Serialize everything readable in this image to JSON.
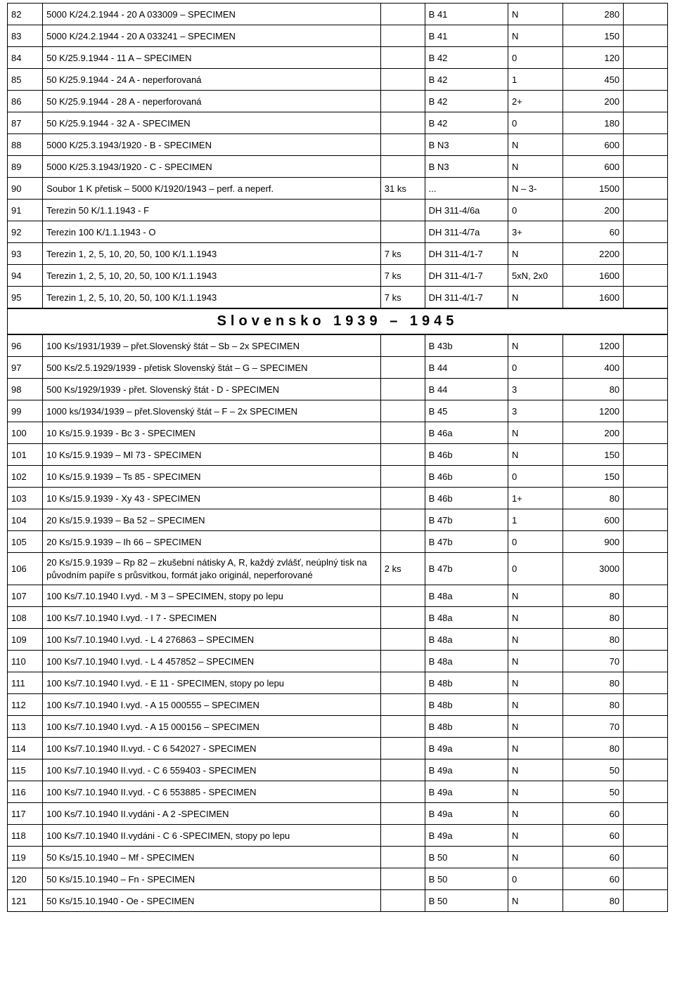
{
  "section_title": "Slovensko 1939 – 1945",
  "rows": [
    {
      "num": "82",
      "desc": "5000 K/24.2.1944 - 20 A 033009 – SPECIMEN",
      "qty": "",
      "ref": "B 41",
      "grade": "N",
      "price": "280"
    },
    {
      "num": "83",
      "desc": "5000 K/24.2.1944 - 20 A 033241 – SPECIMEN",
      "qty": "",
      "ref": "B 41",
      "grade": "N",
      "price": "150"
    },
    {
      "num": "84",
      "desc": "50 K/25.9.1944 - 11 A – SPECIMEN",
      "qty": "",
      "ref": "B 42",
      "grade": "0",
      "price": "120"
    },
    {
      "num": "85",
      "desc": "50 K/25.9.1944 - 24 A - neperforovaná",
      "qty": "",
      "ref": "B 42",
      "grade": "1",
      "price": "450"
    },
    {
      "num": "86",
      "desc": "50 K/25.9.1944 - 28 A - neperforovaná",
      "qty": "",
      "ref": "B 42",
      "grade": "2+",
      "price": "200"
    },
    {
      "num": "87",
      "desc": "50 K/25.9.1944 - 32 A - SPECIMEN",
      "qty": "",
      "ref": "B 42",
      "grade": "0",
      "price": "180"
    },
    {
      "num": "88",
      "desc": "5000 K/25.3.1943/1920 - B - SPECIMEN",
      "qty": "",
      "ref": "B N3",
      "grade": "N",
      "price": "600"
    },
    {
      "num": "89",
      "desc": "5000 K/25.3.1943/1920 - C - SPECIMEN",
      "qty": "",
      "ref": "B N3",
      "grade": "N",
      "price": "600"
    },
    {
      "num": "90",
      "desc": "Soubor 1 K přetisk – 5000 K/1920/1943 – perf. a neperf.",
      "qty": "31 ks",
      "ref": "...",
      "grade": "N – 3-",
      "price": "1500"
    },
    {
      "num": "91",
      "desc": "Terezin 50 K/1.1.1943 - F",
      "qty": "",
      "ref": "DH 311-4/6a",
      "grade": "0",
      "price": "200"
    },
    {
      "num": "92",
      "desc": "Terezin 100 K/1.1.1943 - O",
      "qty": "",
      "ref": "DH 311-4/7a",
      "grade": "3+",
      "price": "60"
    },
    {
      "num": "93",
      "desc": "Terezin 1, 2, 5, 10, 20, 50, 100 K/1.1.1943",
      "qty": "7 ks",
      "ref": "DH 311-4/1-7",
      "grade": "N",
      "price": "2200"
    },
    {
      "num": "94",
      "desc": "Terezin 1, 2, 5, 10, 20, 50, 100 K/1.1.1943",
      "qty": "7 ks",
      "ref": "DH 311-4/1-7",
      "grade": "5xN, 2x0",
      "price": "1600"
    },
    {
      "num": "95",
      "desc": "Terezin 1, 2, 5, 10, 20, 50, 100 K/1.1.1943",
      "qty": "7 ks",
      "ref": "DH 311-4/1-7",
      "grade": "N",
      "price": "1600"
    },
    {
      "section": true
    },
    {
      "num": "96",
      "desc": "100 Ks/1931/1939 – přet.Slovenský štát – Sb – 2x SPECIMEN",
      "qty": "",
      "ref": "B 43b",
      "grade": "N",
      "price": "1200"
    },
    {
      "num": "97",
      "desc": "500 Ks/2.5.1929/1939 - přetisk Slovenský štát – G – SPECIMEN",
      "qty": "",
      "ref": "B 44",
      "grade": "0",
      "price": "400"
    },
    {
      "num": "98",
      "desc": "500 Ks/1929/1939 - přet. Slovenský štát - D - SPECIMEN",
      "qty": "",
      "ref": "B 44",
      "grade": "3",
      "price": "80"
    },
    {
      "num": "99",
      "desc": "1000 ks/1934/1939 – přet.Slovenský štát – F  – 2x SPECIMEN",
      "qty": "",
      "ref": "B 45",
      "grade": "3",
      "price": "1200"
    },
    {
      "num": "100",
      "desc": "10 Ks/15.9.1939 - Bc 3 - SPECIMEN",
      "qty": "",
      "ref": "B 46a",
      "grade": "N",
      "price": "200"
    },
    {
      "num": "101",
      "desc": "10 Ks/15.9.1939 – Ml 73 - SPECIMEN",
      "qty": "",
      "ref": "B 46b",
      "grade": "N",
      "price": "150"
    },
    {
      "num": "102",
      "desc": "10 Ks/15.9.1939 – Ts 85 - SPECIMEN",
      "qty": "",
      "ref": "B 46b",
      "grade": "0",
      "price": "150"
    },
    {
      "num": "103",
      "desc": "10 Ks/15.9.1939 - Xy 43 - SPECIMEN",
      "qty": "",
      "ref": "B 46b",
      "grade": "1+",
      "price": "80"
    },
    {
      "num": "104",
      "desc": "20 Ks/15.9.1939 – Ba 52 – SPECIMEN",
      "qty": "",
      "ref": "B 47b",
      "grade": "1",
      "price": "600"
    },
    {
      "num": "105",
      "desc": "20 Ks/15.9.1939 – Ih 66 – SPECIMEN",
      "qty": "",
      "ref": "B 47b",
      "grade": "0",
      "price": "900"
    },
    {
      "num": "106",
      "desc": "20 Ks/15.9.1939 – Rp 82 – zkušební nátisky A, R, každý zvlášť, neúplný tisk na původním papíře s průsvitkou, formát  jako originál, neperforované",
      "qty": "2 ks",
      "ref": "B 47b",
      "grade": "0",
      "price": "3000",
      "tall": true
    },
    {
      "num": "107",
      "desc": "100 Ks/7.10.1940 I.vyd. - M 3 – SPECIMEN, stopy po lepu",
      "qty": "",
      "ref": "B 48a",
      "grade": "N",
      "price": "80"
    },
    {
      "num": "108",
      "desc": "100 Ks/7.10.1940 I.vyd. - I 7 - SPECIMEN",
      "qty": "",
      "ref": "B 48a",
      "grade": "N",
      "price": "80"
    },
    {
      "num": "109",
      "desc": "100 Ks/7.10.1940 I.vyd. - L 4 276863 – SPECIMEN",
      "qty": "",
      "ref": "B 48a",
      "grade": "N",
      "price": "80"
    },
    {
      "num": "110",
      "desc": "100 Ks/7.10.1940 I.vyd. - L 4 457852 – SPECIMEN",
      "qty": "",
      "ref": "B 48a",
      "grade": "N",
      "price": "70"
    },
    {
      "num": "111",
      "desc": "100 Ks/7.10.1940 I.vyd. - E 11 - SPECIMEN, stopy po lepu",
      "qty": "",
      "ref": "B 48b",
      "grade": "N",
      "price": "80"
    },
    {
      "num": "112",
      "desc": "100 Ks/7.10.1940 I.vyd. - A 15 000555 – SPECIMEN",
      "qty": "",
      "ref": "B 48b",
      "grade": "N",
      "price": "80"
    },
    {
      "num": "113",
      "desc": "100 Ks/7.10.1940 I.vyd. - A 15 000156 – SPECIMEN",
      "qty": "",
      "ref": "B 48b",
      "grade": "N",
      "price": "70"
    },
    {
      "num": "114",
      "desc": "100 Ks/7.10.1940 II.vyd. - C 6 542027  - SPECIMEN",
      "qty": "",
      "ref": "B 49a",
      "grade": "N",
      "price": "80"
    },
    {
      "num": "115",
      "desc": "100 Ks/7.10.1940 II.vyd. - C 6 559403  - SPECIMEN",
      "qty": "",
      "ref": "B 49a",
      "grade": "N",
      "price": "50"
    },
    {
      "num": "116",
      "desc": "100 Ks/7.10.1940 II.vyd. - C 6 553885 - SPECIMEN",
      "qty": "",
      "ref": "B 49a",
      "grade": "N",
      "price": "50"
    },
    {
      "num": "117",
      "desc": "100 Ks/7.10.1940 II.vydáni - A 2 -SPECIMEN",
      "qty": "",
      "ref": "B 49a",
      "grade": "N",
      "price": "60"
    },
    {
      "num": "118",
      "desc": "100 Ks/7.10.1940 II.vydáni - C 6 -SPECIMEN, stopy po lepu",
      "qty": "",
      "ref": "B 49a",
      "grade": "N",
      "price": "60"
    },
    {
      "num": "119",
      "desc": "50 Ks/15.10.1940 – Mf - SPECIMEN",
      "qty": "",
      "ref": "B 50",
      "grade": "N",
      "price": "60"
    },
    {
      "num": "120",
      "desc": "50 Ks/15.10.1940 – Fn - SPECIMEN",
      "qty": "",
      "ref": "B 50",
      "grade": "0",
      "price": "60"
    },
    {
      "num": "121",
      "desc": "50 Ks/15.10.1940 - Oe - SPECIMEN",
      "qty": "",
      "ref": "B 50",
      "grade": "N",
      "price": "80"
    }
  ]
}
